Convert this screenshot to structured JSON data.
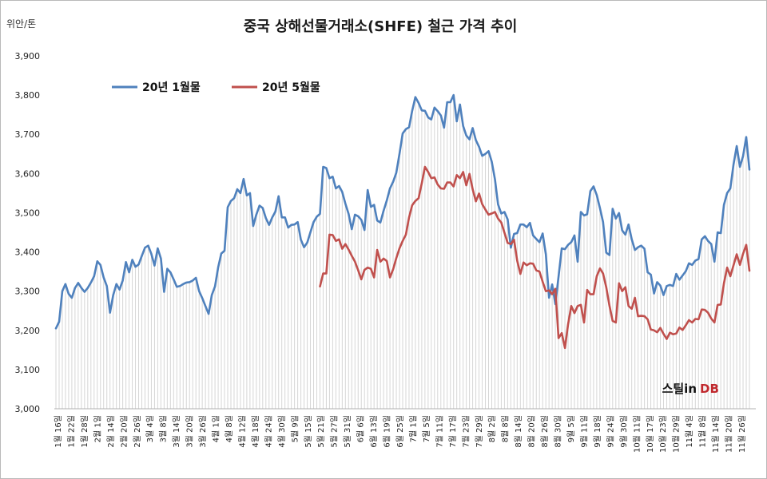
{
  "chart_data": {
    "type": "line",
    "title": "중국 상해선물거래소(SHFE) 철근 가격 추이",
    "ylabel": "위안/톤",
    "ylim": [
      3000,
      3900
    ],
    "yticks": [
      "3,000",
      "3,100",
      "3,200",
      "3,300",
      "3,400",
      "3,500",
      "3,600",
      "3,700",
      "3,800",
      "3,900"
    ],
    "xticks": [
      "1월 16일",
      "1월 22일",
      "1월 28일",
      "2월 1일",
      "2월 14일",
      "2월 20일",
      "2월 26일",
      "3월 4일",
      "3월 8일",
      "3월 14일",
      "3월 20일",
      "3월 26일",
      "4월 1일",
      "4월 8일",
      "4월 12일",
      "4월 18일",
      "4월 24일",
      "4월 30일",
      "5월 9일",
      "5월 15일",
      "5월 21일",
      "5월 27일",
      "5월 31일",
      "6월 6일",
      "6월 13일",
      "6월 19일",
      "6월 25일",
      "7월 1일",
      "7월 5일",
      "7월 11일",
      "7월 17일",
      "7월 23일",
      "7월 29일",
      "8월 2일",
      "8월 8일",
      "8월 14일",
      "8월 20일",
      "8월 26일",
      "8월 30일",
      "9월 5일",
      "9월 11일",
      "9월 18일",
      "9월 24일",
      "9월 30일",
      "10월 11일",
      "10월 17일",
      "10월 23일",
      "10월 29일",
      "11월 4일",
      "11월 8일",
      "11월 14일",
      "11월 20일",
      "11월 26일"
    ],
    "grid": true,
    "legend_position": "top-left",
    "series": [
      {
        "name": "20년 1월물",
        "color": "#4f81bd",
        "values": [
          3205,
          3222,
          3300,
          3318,
          3293,
          3283,
          3308,
          3321,
          3308,
          3298,
          3308,
          3322,
          3338,
          3376,
          3367,
          3335,
          3313,
          3245,
          3290,
          3318,
          3304,
          3327,
          3374,
          3348,
          3380,
          3362,
          3368,
          3390,
          3411,
          3416,
          3395,
          3365,
          3409,
          3383,
          3298,
          3357,
          3348,
          3330,
          3311,
          3313,
          3318,
          3322,
          3323,
          3327,
          3334,
          3300,
          3282,
          3262,
          3242,
          3290,
          3312,
          3361,
          3396,
          3403,
          3514,
          3530,
          3537,
          3560,
          3550,
          3586,
          3544,
          3550,
          3466,
          3495,
          3518,
          3512,
          3486,
          3469,
          3488,
          3503,
          3542,
          3488,
          3488,
          3462,
          3469,
          3470,
          3476,
          3431,
          3412,
          3424,
          3450,
          3476,
          3490,
          3497,
          3617,
          3614,
          3588,
          3592,
          3562,
          3568,
          3553,
          3523,
          3497,
          3458,
          3495,
          3491,
          3482,
          3456,
          3558,
          3515,
          3520,
          3480,
          3475,
          3505,
          3531,
          3562,
          3579,
          3602,
          3650,
          3702,
          3713,
          3718,
          3760,
          3795,
          3780,
          3761,
          3760,
          3743,
          3738,
          3768,
          3759,
          3748,
          3717,
          3782,
          3782,
          3800,
          3733,
          3776,
          3721,
          3697,
          3687,
          3716,
          3685,
          3668,
          3645,
          3650,
          3657,
          3630,
          3585,
          3521,
          3498,
          3502,
          3483,
          3411,
          3446,
          3448,
          3470,
          3470,
          3463,
          3474,
          3442,
          3433,
          3425,
          3447,
          3394,
          3283,
          3317,
          3267,
          3337,
          3409,
          3407,
          3418,
          3425,
          3442,
          3375,
          3502,
          3493,
          3496,
          3555,
          3567,
          3545,
          3512,
          3476,
          3398,
          3392,
          3510,
          3485,
          3499,
          3455,
          3444,
          3470,
          3432,
          3405,
          3412,
          3416,
          3408,
          3348,
          3342,
          3294,
          3323,
          3314,
          3290,
          3313,
          3316,
          3313,
          3344,
          3329,
          3340,
          3351,
          3371,
          3367,
          3378,
          3382,
          3432,
          3440,
          3428,
          3420,
          3375,
          3450,
          3448,
          3520,
          3550,
          3562,
          3623,
          3670,
          3617,
          3644,
          3693,
          3610
        ]
      },
      {
        "name": "20년 5월물",
        "color": "#c0504d",
        "start_date": "5월 15일",
        "values": [
          3312,
          3345,
          3345,
          3444,
          3443,
          3428,
          3432,
          3408,
          3420,
          3406,
          3390,
          3375,
          3353,
          3330,
          3354,
          3360,
          3357,
          3335,
          3405,
          3375,
          3383,
          3377,
          3335,
          3356,
          3384,
          3409,
          3428,
          3444,
          3488,
          3519,
          3530,
          3537,
          3575,
          3617,
          3604,
          3588,
          3590,
          3572,
          3562,
          3561,
          3577,
          3577,
          3567,
          3596,
          3588,
          3604,
          3570,
          3599,
          3560,
          3529,
          3549,
          3522,
          3508,
          3495,
          3498,
          3502,
          3485,
          3475,
          3449,
          3423,
          3420,
          3431,
          3378,
          3344,
          3373,
          3366,
          3371,
          3370,
          3353,
          3350,
          3324,
          3300,
          3302,
          3292,
          3306,
          3180,
          3193,
          3155,
          3215,
          3262,
          3244,
          3262,
          3265,
          3220,
          3303,
          3292,
          3292,
          3338,
          3358,
          3345,
          3310,
          3263,
          3224,
          3220,
          3320,
          3300,
          3310,
          3262,
          3255,
          3283,
          3236,
          3237,
          3236,
          3228,
          3202,
          3200,
          3195,
          3206,
          3191,
          3178,
          3194,
          3190,
          3192,
          3207,
          3201,
          3213,
          3226,
          3220,
          3229,
          3228,
          3253,
          3252,
          3245,
          3230,
          3220,
          3265,
          3266,
          3320,
          3360,
          3338,
          3366,
          3394,
          3367,
          3395,
          3418,
          3352
        ]
      }
    ]
  },
  "watermark": {
    "part1": "스틸in",
    "part2": "DB"
  }
}
